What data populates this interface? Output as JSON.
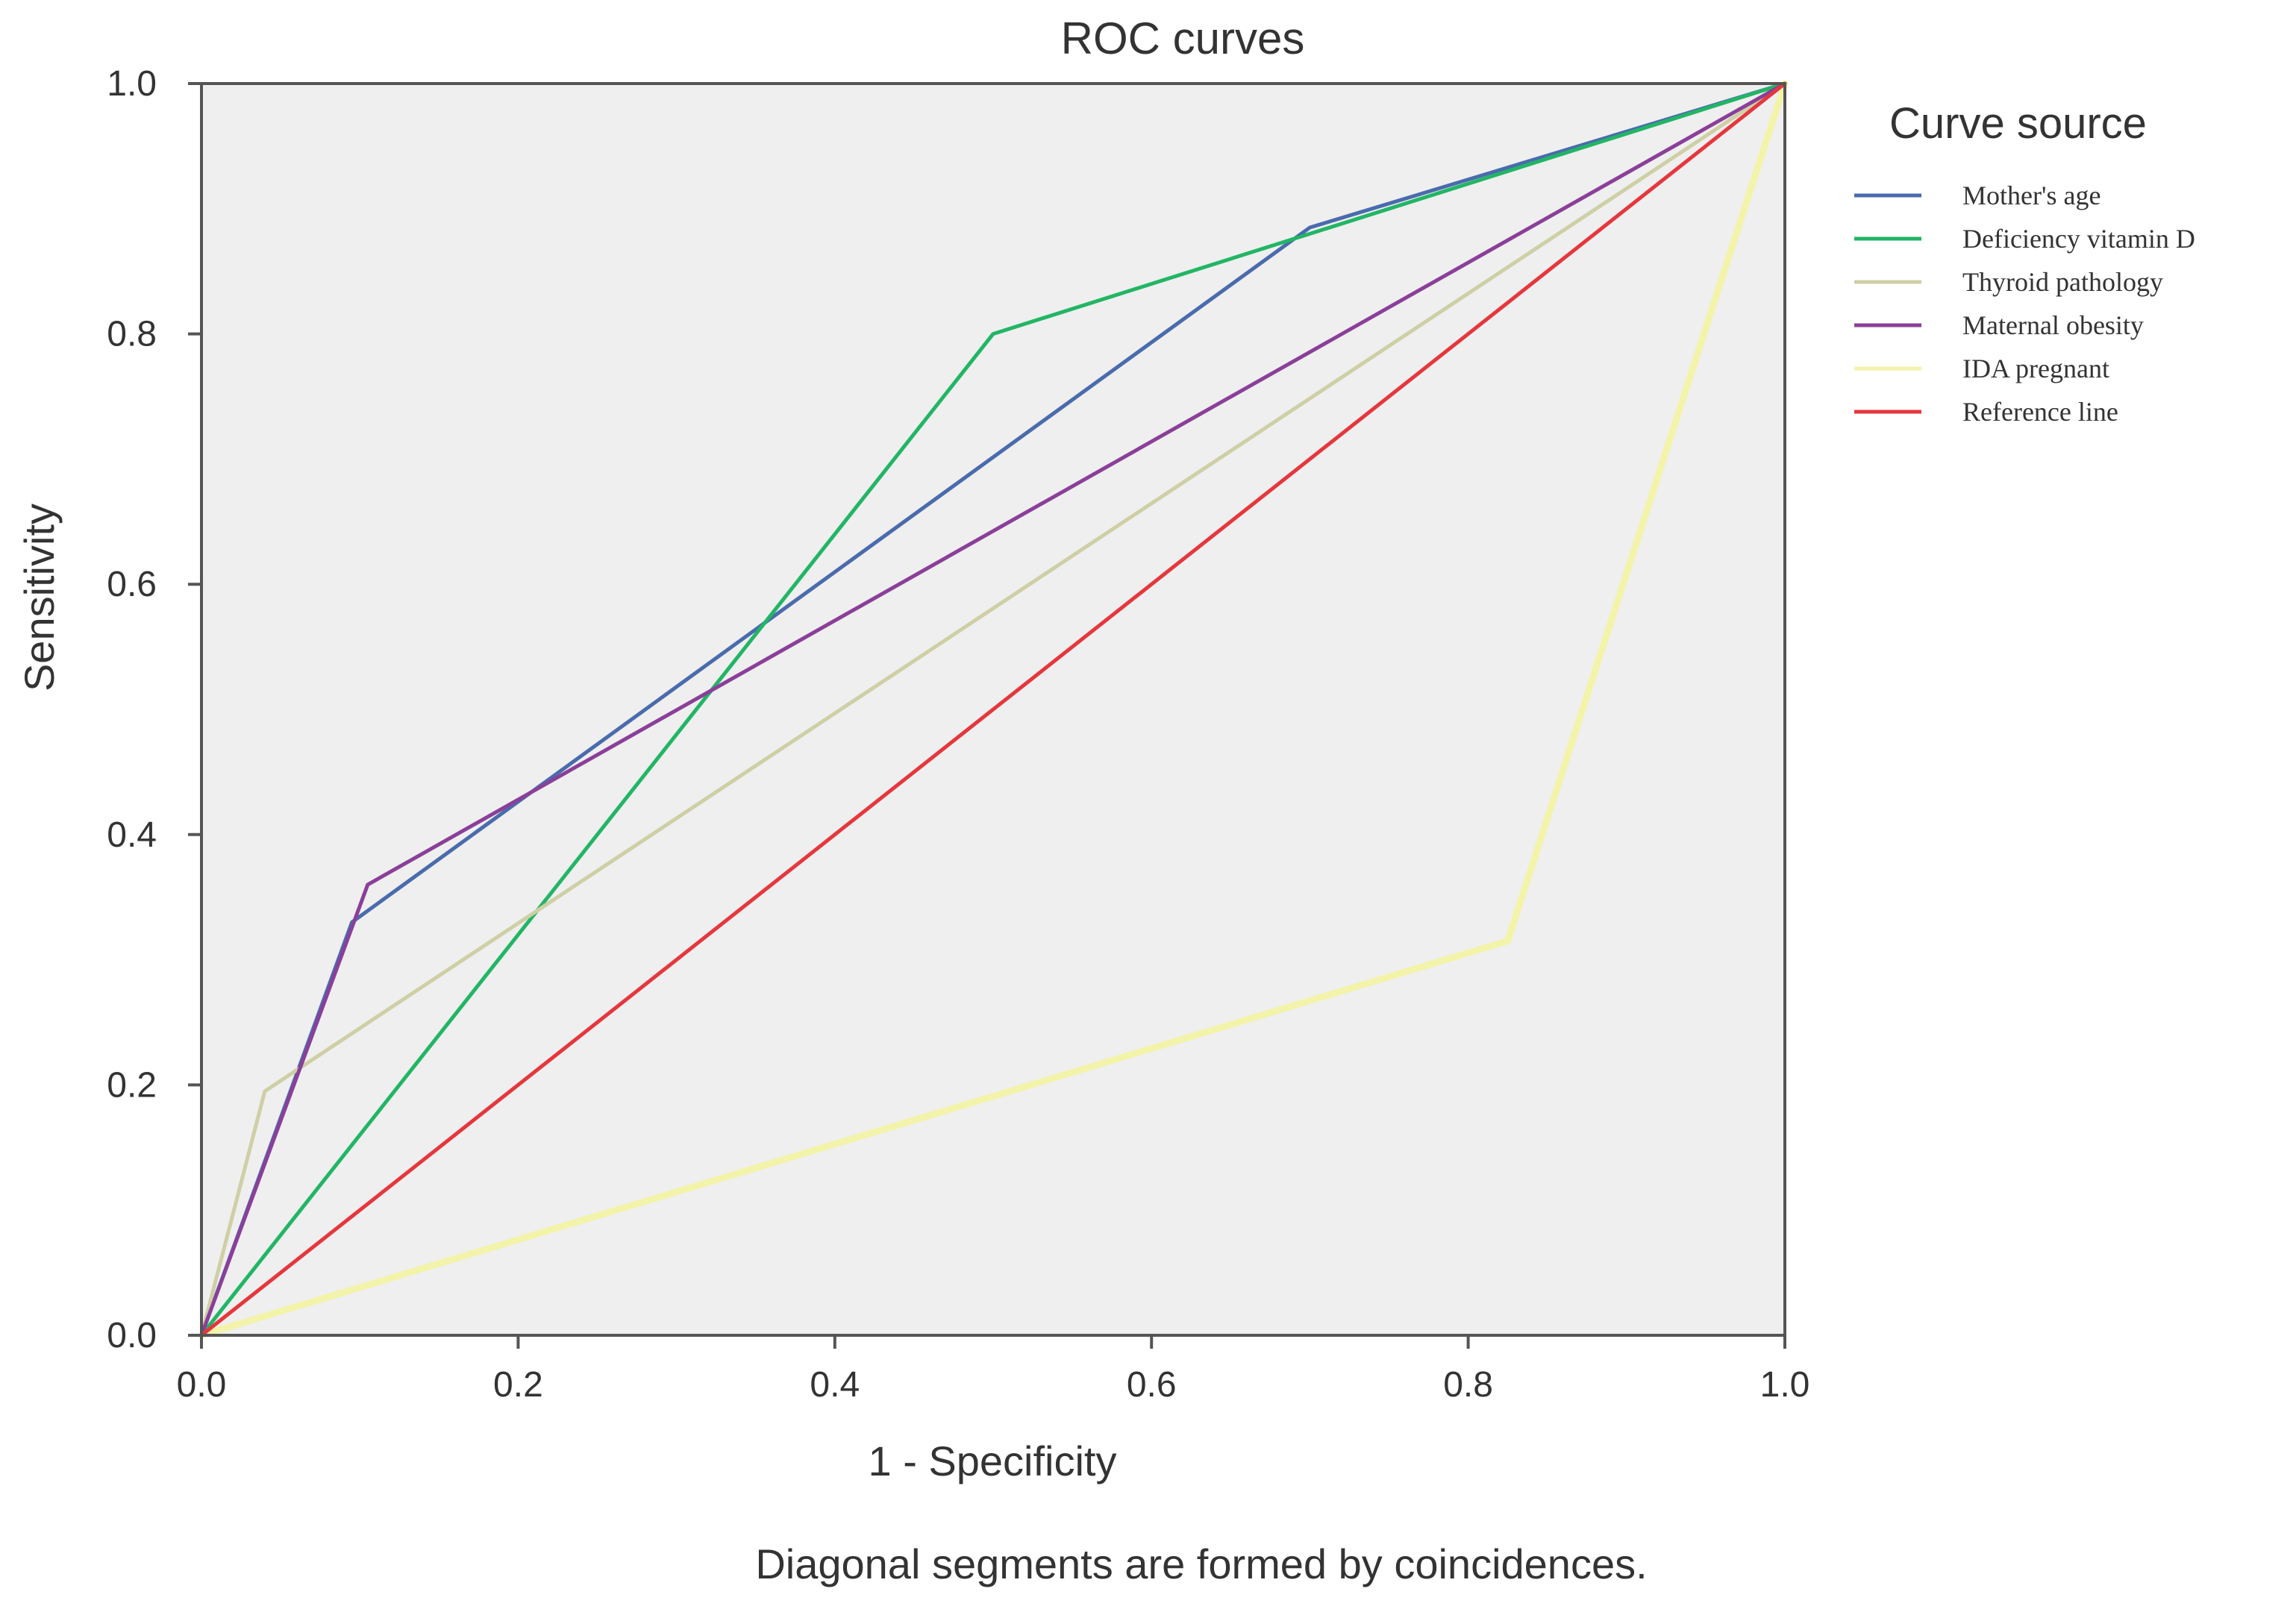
{
  "chart_data": {
    "type": "line",
    "title": "ROC curves",
    "xlabel": "1 - Specificity",
    "ylabel": "Sensitivity",
    "xlim": [
      0,
      1
    ],
    "ylim": [
      0,
      1
    ],
    "xticks": [
      "0.0",
      "0.2",
      "0.4",
      "0.6",
      "0.8",
      "1.0"
    ],
    "yticks": [
      "0.0",
      "0.2",
      "0.4",
      "0.6",
      "0.8",
      "1.0"
    ],
    "grid": false,
    "plot_background": "#efefef",
    "legend_title": "Curve source",
    "legend_position": "right",
    "footnote": "Diagonal segments are formed by coincidences.",
    "series": [
      {
        "name": "Mother's age",
        "color": "#4a6bad",
        "x": [
          0,
          0.095,
          0.7,
          1.0
        ],
        "y": [
          0,
          0.33,
          0.885,
          1.0
        ]
      },
      {
        "name": "Deficiency vitamin D",
        "color": "#22b565",
        "x": [
          0,
          0.5,
          0.7,
          1.0
        ],
        "y": [
          0,
          0.8,
          0.88,
          1.0
        ]
      },
      {
        "name": "Thyroid pathology",
        "color": "#cfcfa6",
        "x": [
          0,
          0.04,
          1.0
        ],
        "y": [
          0,
          0.195,
          1.0
        ]
      },
      {
        "name": "Maternal obesity",
        "color": "#8a3f99",
        "x": [
          0,
          0.105,
          1.0
        ],
        "y": [
          0,
          0.36,
          1.0
        ]
      },
      {
        "name": "IDA pregnant",
        "color": "#f3f3aa",
        "x": [
          0,
          0.825,
          1.0
        ],
        "y": [
          0,
          0.315,
          1.0
        ]
      },
      {
        "name": "Reference line",
        "color": "#e5373d",
        "x": [
          0,
          1.0
        ],
        "y": [
          0,
          1.0
        ]
      }
    ]
  }
}
